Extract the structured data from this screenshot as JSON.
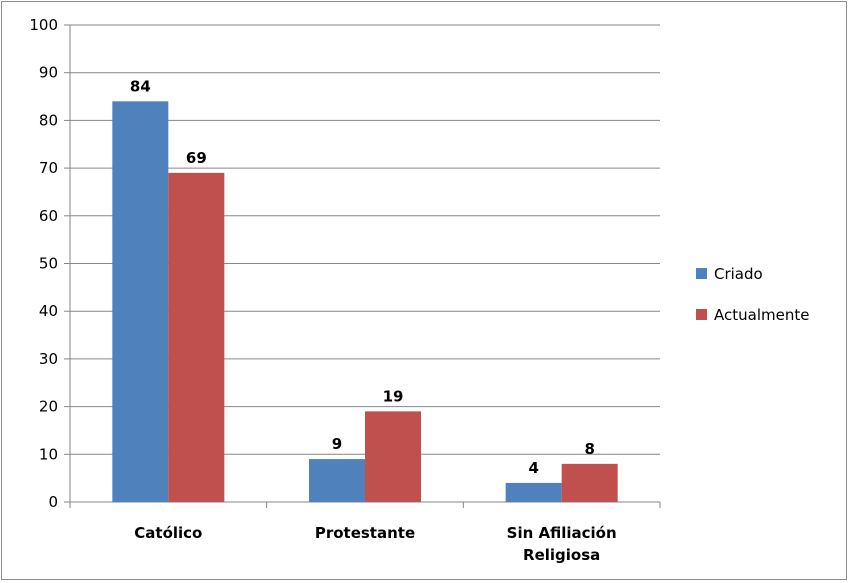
{
  "chart_data": {
    "type": "bar",
    "categories": [
      [
        "Católico"
      ],
      [
        "Protestante"
      ],
      [
        "Sin Afiliación",
        "Religiosa"
      ]
    ],
    "series": [
      {
        "name": "Criado",
        "values": [
          84,
          9,
          4
        ],
        "color": "#4f81bd"
      },
      {
        "name": "Actualmente",
        "values": [
          69,
          19,
          8
        ],
        "color": "#c0504d"
      }
    ],
    "ylim": [
      0,
      100
    ],
    "yticks": [
      0,
      10,
      20,
      30,
      40,
      50,
      60,
      70,
      80,
      90,
      100
    ],
    "grid": true,
    "legend_position": "right",
    "title": "",
    "xlabel": "",
    "ylabel": ""
  }
}
